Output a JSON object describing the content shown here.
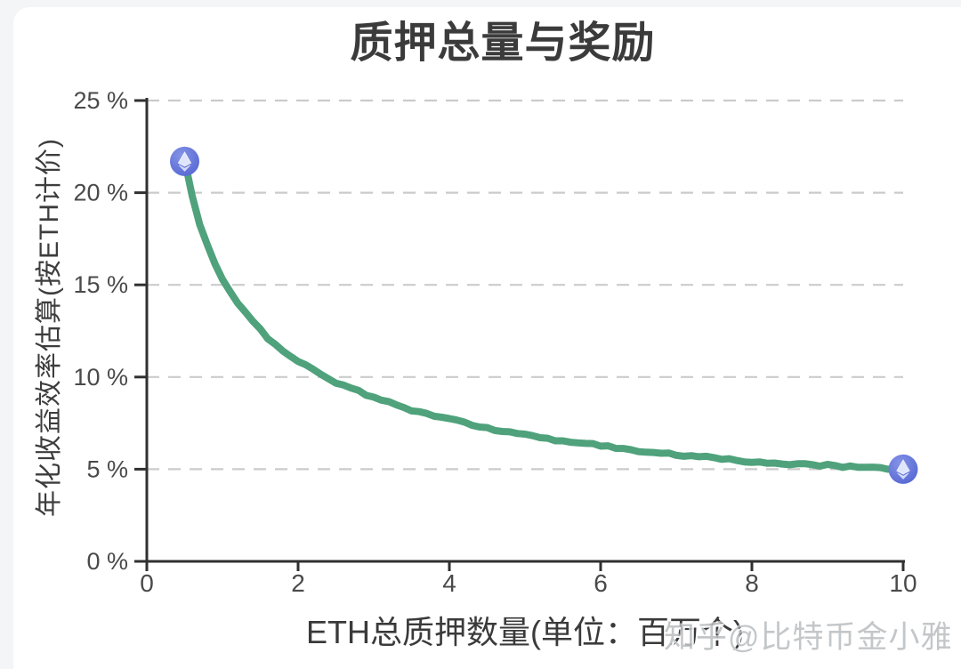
{
  "page": {
    "background_color": "#f3f5f6",
    "card_color": "#ffffff"
  },
  "chart_data": {
    "type": "line",
    "title": "质押总量与奖励",
    "xlabel": "ETH总质押数量(单位：百万个)",
    "ylabel": "年化收益效率估算(按ETH计价)",
    "xlim": [
      0,
      10
    ],
    "ylim": [
      0,
      25
    ],
    "x_ticks": [
      0,
      2,
      4,
      6,
      8,
      10
    ],
    "y_ticks": [
      0,
      5,
      10,
      15,
      20,
      25
    ],
    "y_tick_suffix": " %",
    "grid": "dashed-horizontal",
    "grid_color": "#cbcbcb",
    "axis_color": "#303030",
    "tick_label_color": "#4a4a4a",
    "legend": "none",
    "series": [
      {
        "name": "年化收益效率",
        "color": "#4fa27b",
        "line_width": 8,
        "marker": "eth-coin",
        "marker_color": "#5b6fd7",
        "points": [
          [
            0.5,
            21.7
          ],
          [
            0.6,
            19.8
          ],
          [
            0.7,
            18.3
          ],
          [
            0.8,
            17.2
          ],
          [
            0.9,
            16.2
          ],
          [
            1.0,
            15.3
          ],
          [
            1.2,
            14.0
          ],
          [
            1.4,
            13.0
          ],
          [
            1.6,
            12.1
          ],
          [
            1.8,
            11.4
          ],
          [
            2.0,
            10.9
          ],
          [
            2.5,
            9.7
          ],
          [
            3.0,
            8.9
          ],
          [
            3.5,
            8.2
          ],
          [
            4.0,
            7.7
          ],
          [
            4.5,
            7.2
          ],
          [
            5.0,
            6.9
          ],
          [
            5.5,
            6.5
          ],
          [
            6.0,
            6.3
          ],
          [
            6.5,
            6.0
          ],
          [
            7.0,
            5.8
          ],
          [
            7.5,
            5.6
          ],
          [
            8.0,
            5.4
          ],
          [
            8.5,
            5.3
          ],
          [
            9.0,
            5.2
          ],
          [
            9.5,
            5.1
          ],
          [
            10.0,
            5.0
          ]
        ]
      }
    ]
  },
  "watermark": {
    "text": "知乎@比特币金小雅",
    "color": "#c9cccd"
  }
}
